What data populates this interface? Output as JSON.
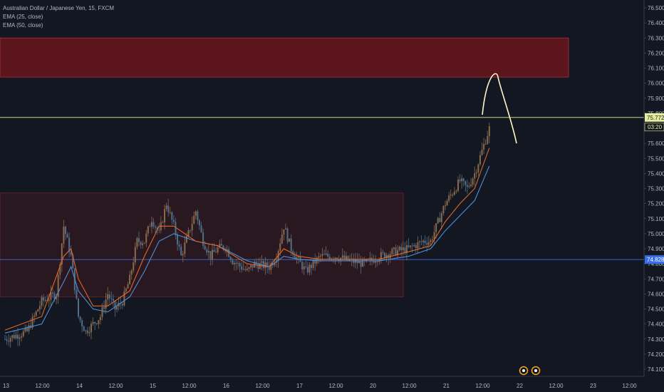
{
  "header": {
    "symbol_line": "Australian Dollar / Japanese Yen, 15, FXCM",
    "ema1_label": "EMA (25, close)",
    "ema2_label": "EMA (50, close)"
  },
  "colors": {
    "background": "#131722",
    "up_candle": "#8a6a4e",
    "down_candle": "#4f6f8a",
    "ema25": "#e0692a",
    "ema50": "#4a90d9",
    "resistance_zone": "#5c141d",
    "support_zone": "#2a1820",
    "current_price_line": "#e6ee9c",
    "support_line": "#3a6ee8",
    "projection": "#fff9c4",
    "axis_text": "#b2b5be"
  },
  "chart_data": {
    "type": "candlestick",
    "title": "Australian Dollar / Japanese Yen, 15, FXCM",
    "ylim": [
      74.05,
      76.55
    ],
    "y_ticks": [
      "76.500",
      "76.400",
      "76.300",
      "76.200",
      "76.100",
      "76.000",
      "75.900",
      "75.800",
      "75.700",
      "75.600",
      "75.500",
      "75.400",
      "75.300",
      "75.200",
      "75.100",
      "75.000",
      "74.900",
      "74.800",
      "74.700",
      "74.600",
      "74.500",
      "74.400",
      "74.300",
      "74.200",
      "74.100"
    ],
    "x_ticks": [
      "13",
      "12:00",
      "14",
      "12:00",
      "15",
      "12:00",
      "16",
      "12:00",
      "17",
      "12:00",
      "20",
      "12:00",
      "21",
      "12:00",
      "22",
      "12:00",
      "23",
      "12:00"
    ],
    "price_path": [
      [
        0,
        74.3
      ],
      [
        3,
        74.35
      ],
      [
        5,
        74.55
      ],
      [
        7,
        74.6
      ],
      [
        8,
        75.05
      ],
      [
        9,
        74.85
      ],
      [
        10,
        74.45
      ],
      [
        11,
        74.35
      ],
      [
        13,
        74.45
      ],
      [
        14,
        74.6
      ],
      [
        15,
        74.5
      ],
      [
        16,
        74.55
      ],
      [
        17,
        74.7
      ],
      [
        18,
        74.95
      ],
      [
        19,
        74.95
      ],
      [
        20,
        75.1
      ],
      [
        21,
        75.0
      ],
      [
        22,
        75.2
      ],
      [
        23,
        75.05
      ],
      [
        24,
        74.85
      ],
      [
        26,
        75.15
      ],
      [
        27,
        74.95
      ],
      [
        28,
        74.85
      ],
      [
        29,
        74.9
      ],
      [
        30,
        74.92
      ],
      [
        31,
        74.82
      ],
      [
        33,
        74.75
      ],
      [
        34,
        74.8
      ],
      [
        36,
        74.78
      ],
      [
        37,
        74.85
      ],
      [
        38,
        75.05
      ],
      [
        39,
        74.9
      ],
      [
        40,
        74.82
      ],
      [
        41,
        74.75
      ],
      [
        43,
        74.85
      ],
      [
        45,
        74.85
      ],
      [
        47,
        74.82
      ],
      [
        49,
        74.8
      ],
      [
        51,
        74.85
      ],
      [
        53,
        74.88
      ],
      [
        55,
        74.9
      ],
      [
        57,
        74.95
      ],
      [
        58,
        74.95
      ],
      [
        60,
        75.2
      ],
      [
        62,
        75.35
      ],
      [
        63,
        75.3
      ],
      [
        64,
        75.4
      ],
      [
        65,
        75.55
      ],
      [
        66,
        75.7
      ]
    ],
    "ema25_path": [
      [
        0,
        74.36
      ],
      [
        5,
        74.45
      ],
      [
        8,
        74.85
      ],
      [
        9,
        74.9
      ],
      [
        10,
        74.7
      ],
      [
        12,
        74.52
      ],
      [
        14,
        74.52
      ],
      [
        17,
        74.62
      ],
      [
        19,
        74.85
      ],
      [
        21,
        75.05
      ],
      [
        23,
        75.05
      ],
      [
        26,
        74.95
      ],
      [
        29,
        74.92
      ],
      [
        33,
        74.8
      ],
      [
        36,
        74.78
      ],
      [
        38,
        74.9
      ],
      [
        40,
        74.85
      ],
      [
        43,
        74.83
      ],
      [
        47,
        74.83
      ],
      [
        51,
        74.83
      ],
      [
        55,
        74.88
      ],
      [
        58,
        74.92
      ],
      [
        60,
        75.08
      ],
      [
        62,
        75.2
      ],
      [
        64,
        75.3
      ],
      [
        66,
        75.57
      ]
    ],
    "ema50_path": [
      [
        0,
        74.34
      ],
      [
        5,
        74.4
      ],
      [
        8,
        74.68
      ],
      [
        9,
        74.78
      ],
      [
        10,
        74.62
      ],
      [
        12,
        74.5
      ],
      [
        14,
        74.48
      ],
      [
        17,
        74.58
      ],
      [
        19,
        74.75
      ],
      [
        21,
        74.95
      ],
      [
        23,
        75.0
      ],
      [
        26,
        74.95
      ],
      [
        29,
        74.92
      ],
      [
        33,
        74.82
      ],
      [
        36,
        74.78
      ],
      [
        38,
        74.85
      ],
      [
        40,
        74.83
      ],
      [
        43,
        74.82
      ],
      [
        47,
        74.82
      ],
      [
        51,
        74.82
      ],
      [
        55,
        74.85
      ],
      [
        58,
        74.9
      ],
      [
        60,
        75.02
      ],
      [
        62,
        75.12
      ],
      [
        64,
        75.22
      ],
      [
        66,
        75.45
      ]
    ],
    "resistance_zone": {
      "from": 76.04,
      "to": 76.3
    },
    "support_zone": {
      "from": 74.58,
      "to": 75.27
    },
    "current_price": "75.772",
    "countdown": "03:20",
    "support_level": "74.828",
    "projection_peak": 76.04,
    "grid": false
  }
}
